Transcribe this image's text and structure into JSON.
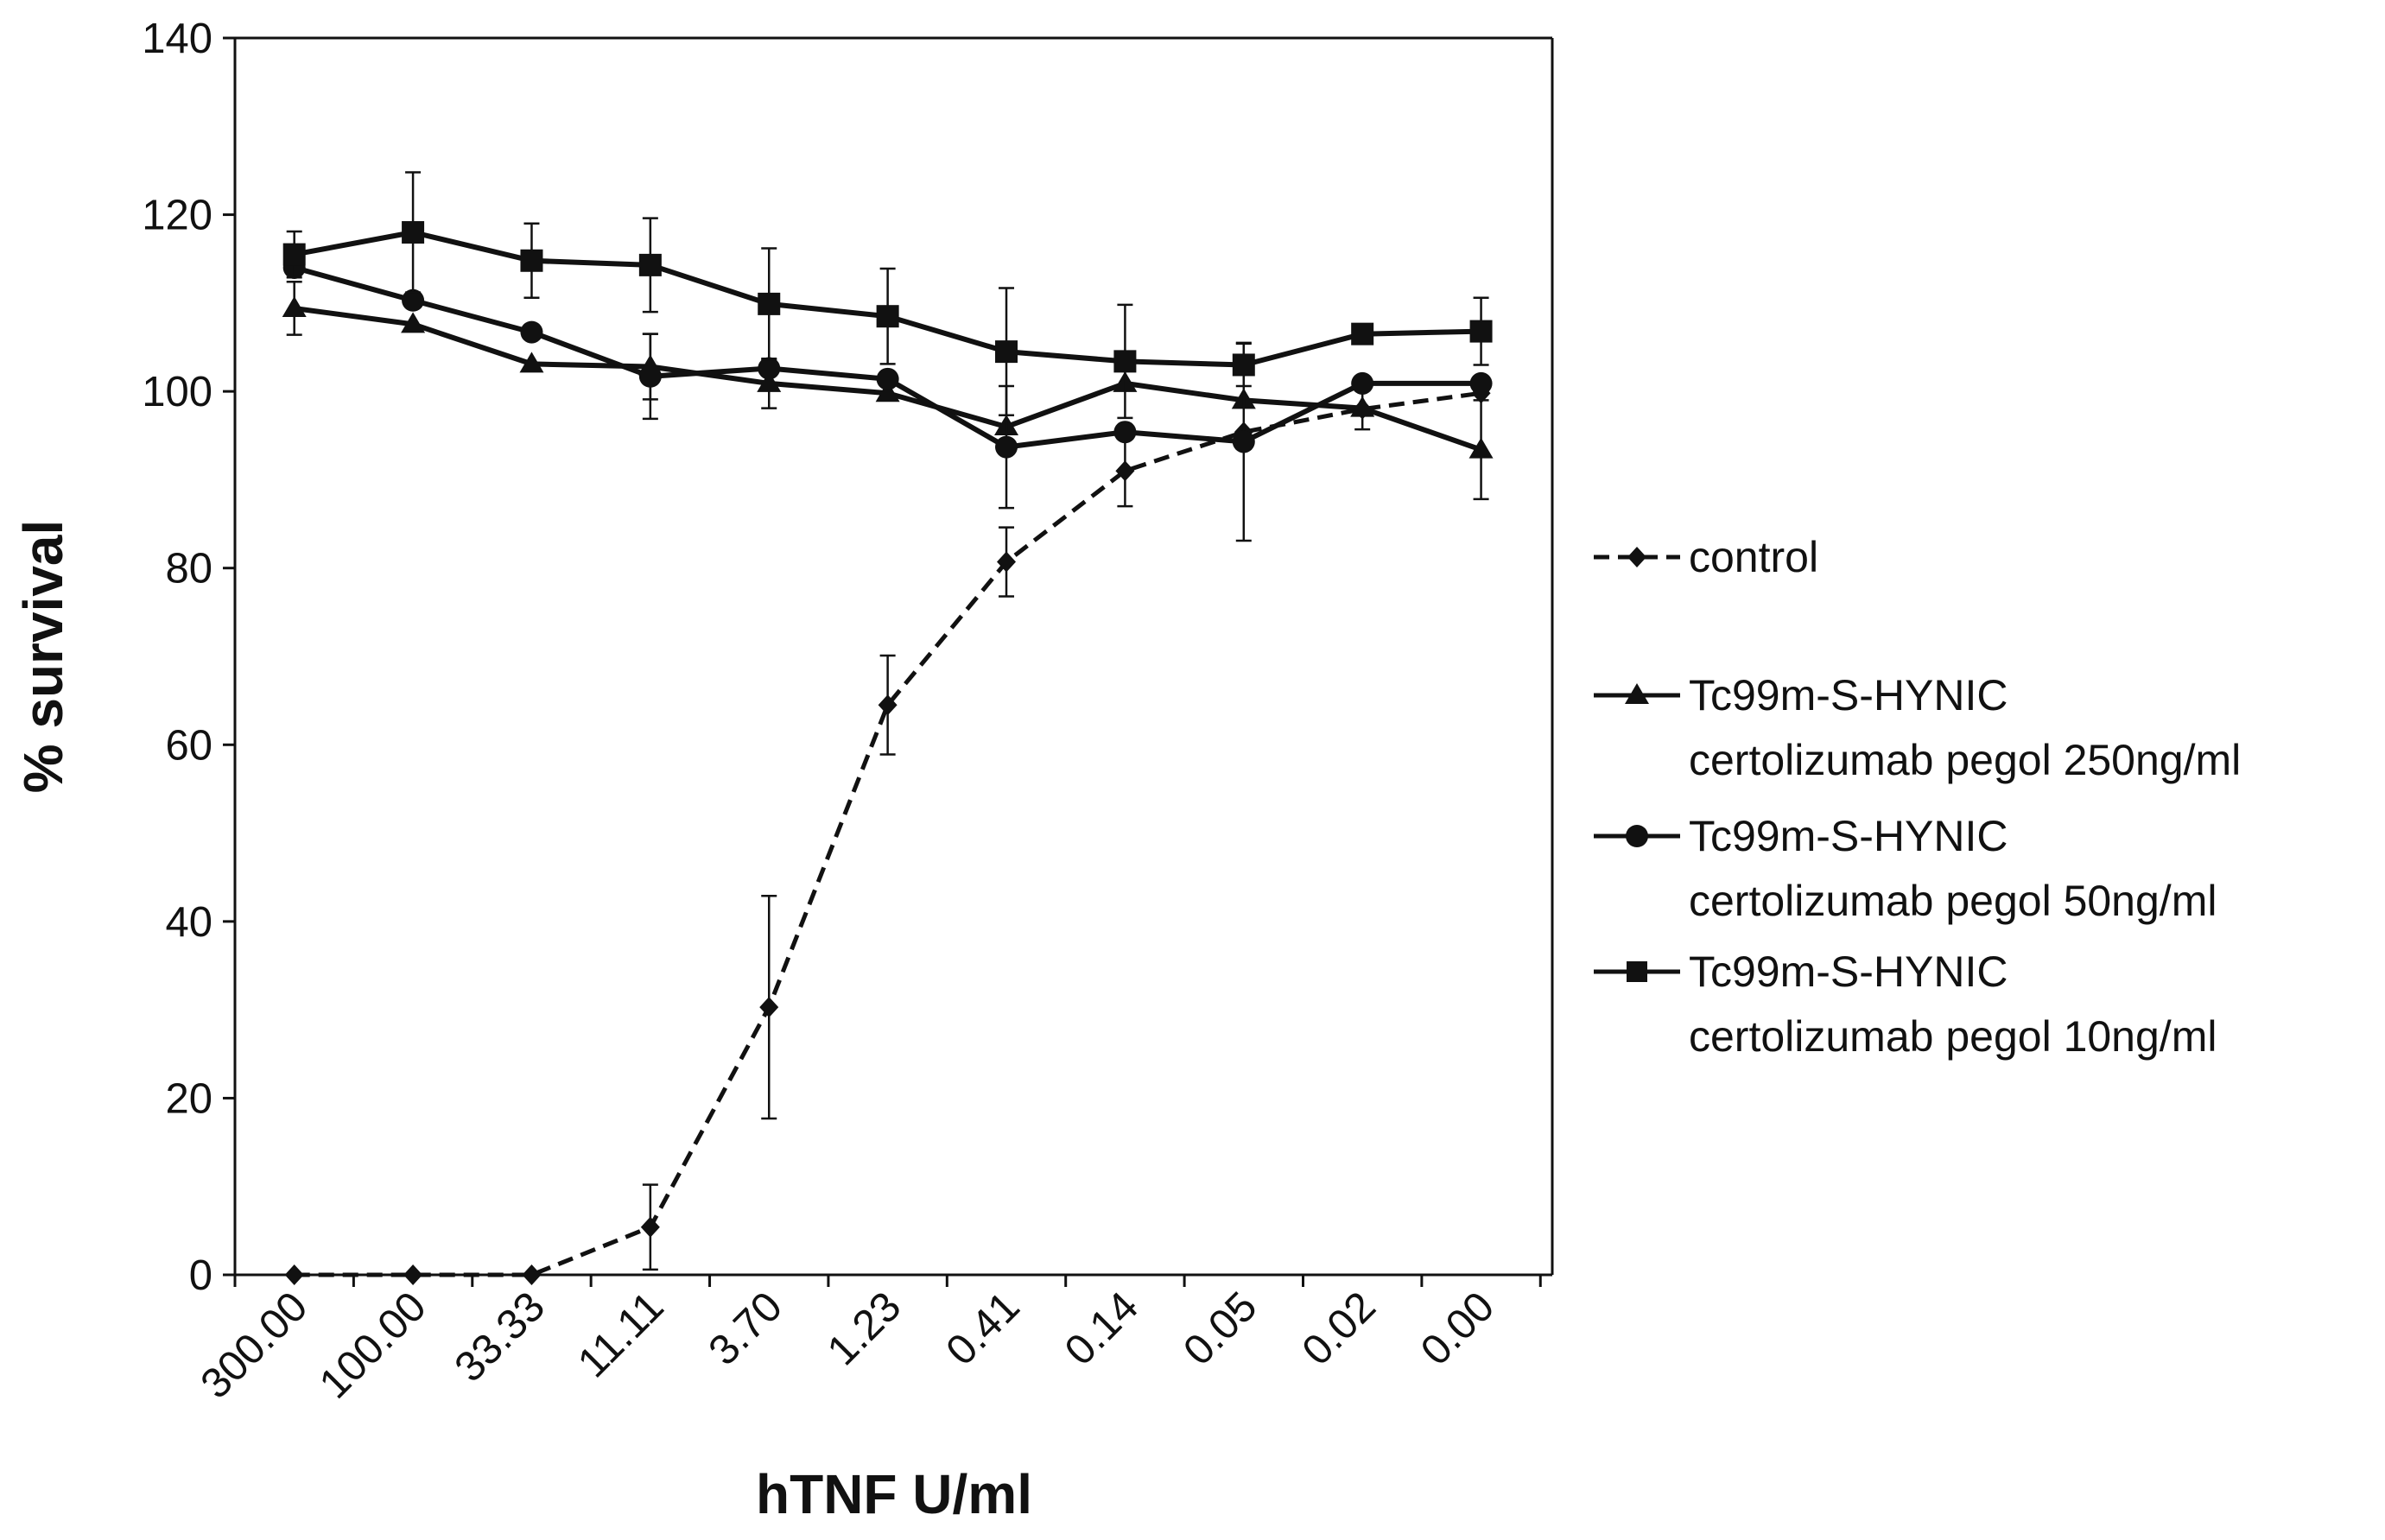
{
  "chart_data": {
    "type": "line",
    "title": "",
    "xlabel": "hTNF U/ml",
    "ylabel": "% survival",
    "ylim": [
      0,
      140
    ],
    "yticks": [
      0,
      20,
      40,
      60,
      80,
      100,
      120,
      140
    ],
    "categories": [
      "300.00",
      "100.00",
      "33.33",
      "11.11",
      "3.70",
      "1.23",
      "0.41",
      "0.14",
      "0.05",
      "0.02",
      "0.00"
    ],
    "legend_position": "right",
    "series": [
      {
        "name": "control",
        "legend_lines": [
          "control"
        ],
        "marker": "diamond",
        "dashed": true,
        "values": [
          0,
          0,
          0,
          5.4,
          30.3,
          64.5,
          80.7,
          91.0,
          95.4,
          98.0,
          99.8
        ],
        "errors": [
          0,
          0,
          0,
          4.8,
          12.6,
          5.6,
          3.9,
          4.0,
          0,
          0,
          0
        ]
      },
      {
        "name": "Tc99m-S-HYNIC certolizumab pegol 250ng/ml",
        "legend_lines": [
          "Tc99m-S-HYNIC",
          "certolizumab pegol 250ng/ml"
        ],
        "marker": "triangle",
        "dashed": false,
        "values": [
          109.4,
          107.6,
          103.1,
          102.8,
          100.9,
          99.8,
          96.0,
          100.9,
          99.0,
          98.1,
          93.4
        ],
        "errors": [
          3.0,
          0,
          0,
          3.7,
          2.8,
          0,
          0,
          0,
          0,
          2.4,
          5.6
        ]
      },
      {
        "name": "Tc99m-S-HYNIC certolizumab pegol 50ng/ml",
        "legend_lines": [
          "Tc99m-S-HYNIC",
          "certolizumab pegol 50ng/ml"
        ],
        "marker": "circle",
        "dashed": false,
        "values": [
          114.0,
          110.3,
          106.7,
          101.7,
          102.6,
          101.4,
          93.7,
          95.4,
          94.3,
          100.9,
          100.9
        ],
        "errors": [
          0,
          0,
          0,
          4.8,
          0,
          0,
          6.9,
          0,
          11.2,
          0,
          0
        ]
      },
      {
        "name": "Tc99m-S-HYNIC certolizumab pegol 10ng/ml",
        "legend_lines": [
          "Tc99m-S-HYNIC",
          "certolizumab pegol 10ng/ml"
        ],
        "marker": "square",
        "dashed": false,
        "values": [
          115.5,
          118.0,
          114.8,
          114.3,
          109.9,
          108.5,
          104.5,
          103.4,
          103.0,
          106.5,
          106.8
        ],
        "errors": [
          2.6,
          6.8,
          4.2,
          5.3,
          6.3,
          5.4,
          7.2,
          6.4,
          2.4,
          0,
          3.8
        ]
      }
    ]
  }
}
